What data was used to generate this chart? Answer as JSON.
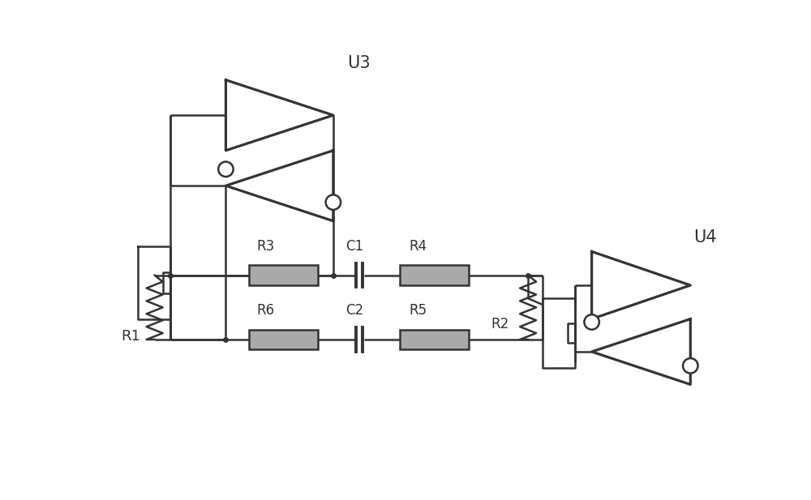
{
  "bg_color": "#ffffff",
  "line_color": "#333333",
  "lw": 1.8,
  "comp_fill": "#aaaaaa",
  "comp_edge": "#333333",
  "fig_w": 10.0,
  "fig_h": 6.17,
  "dpi": 100,
  "U3_label": "U3",
  "U4_label": "U4",
  "R1_label": "R1",
  "R2_label": "R2",
  "R3_label": "R3",
  "R4_label": "R4",
  "R5_label": "R5",
  "R6_label": "R6",
  "C1_label": "C1",
  "C2_label": "C2"
}
